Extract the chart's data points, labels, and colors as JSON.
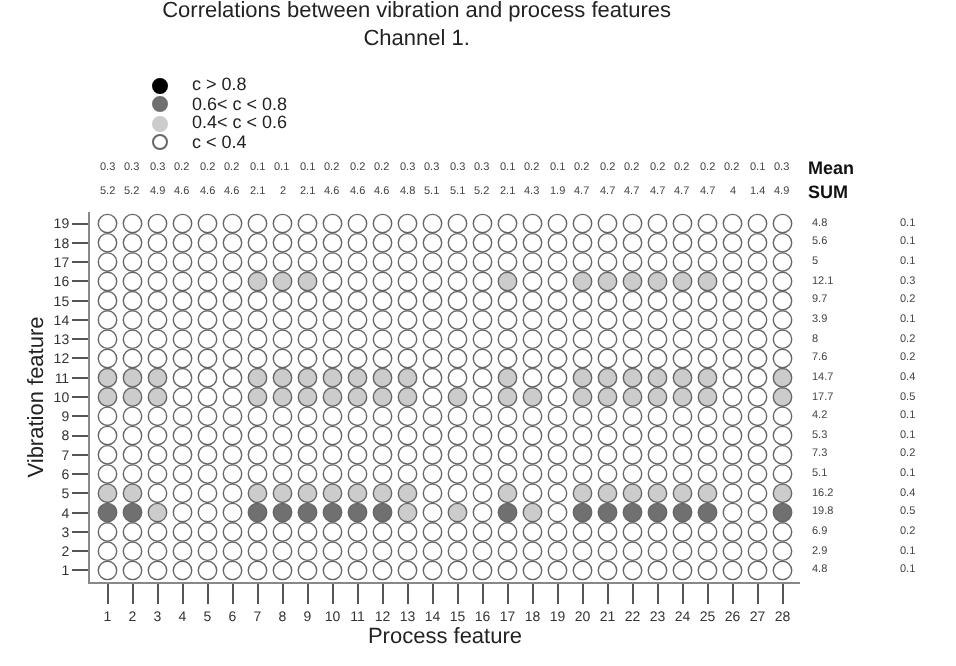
{
  "chart_data": {
    "type": "scatter",
    "title": "Correlations between vibration and process features",
    "subtitle": "Channel 1.",
    "xlabel": "Process feature",
    "ylabel": "Vibration feature",
    "xlim": [
      0.3,
      28.7
    ],
    "xticks": [
      1,
      2,
      3,
      4,
      5,
      6,
      7,
      8,
      9,
      10,
      11,
      12,
      13,
      14,
      15,
      16,
      17,
      18,
      19,
      20,
      21,
      22,
      23,
      24,
      25,
      26,
      27,
      28
    ],
    "ylim": [
      0.4,
      19.6
    ],
    "yticks": [
      1,
      2,
      3,
      4,
      5,
      6,
      7,
      8,
      9,
      10,
      11,
      12,
      13,
      14,
      15,
      16,
      17,
      18,
      19
    ],
    "annotations": [
      "Mean",
      "SUM",
      "0.3",
      "0.3",
      "0.3",
      "0.2",
      "0.2",
      "0.2",
      "0.1",
      "0.1",
      "0.1",
      "0.2",
      "0.2",
      "0.2",
      "0.3",
      "0.3",
      "0.3",
      "0.3",
      "0.1",
      "0.2",
      "0.1",
      "0.2",
      "0.2",
      "0.2",
      "0.2",
      "0.2",
      "0.2",
      "0.2",
      "0.1",
      "0.3",
      "5.2",
      "5.2",
      "4.9",
      "4.6",
      "4.6",
      "4.6",
      "2.1",
      "2",
      "2.1",
      "4.6",
      "4.6",
      "4.6",
      "4.8",
      "5.1",
      "5.1",
      "5.2",
      "2.1",
      "4.3",
      "1.9",
      "4.7",
      "4.7",
      "4.7",
      "4.7",
      "4.7",
      "4.7",
      "4",
      "1.4",
      "4.9",
      "4.8",
      "5.6",
      "5",
      "12.1",
      "9.7",
      "3.9",
      "8",
      "7.6",
      "14.7",
      "17.7",
      "4.2",
      "5.3",
      "7.3",
      "5.1",
      "16.2",
      "19.8",
      "6.9",
      "2.9",
      "4.8",
      "0.1",
      "0.1",
      "0.1",
      "0.3",
      "0.2",
      "0.1",
      "0.2",
      "0.2",
      "0.4",
      "0.5",
      "0.1",
      "0.1",
      "0.2",
      "0.1",
      "0.4",
      "0.5",
      "0.2",
      "0.1",
      "0.1"
    ],
    "marker": "circle",
    "grid": false,
    "legend": "top left",
    "series": [
      {
        "name": "c > 0.8",
        "color": "#000000"
      },
      {
        "name": "0.6< c < 0.8",
        "color": "#707070",
        "x": [
          1,
          2,
          7,
          8,
          9,
          10,
          11,
          12,
          17,
          20,
          21,
          22,
          23,
          24,
          25,
          28
        ],
        "values": [
          4,
          4,
          4,
          4,
          4,
          4,
          4,
          4,
          4,
          4,
          4,
          4,
          4,
          4,
          4,
          4
        ]
      },
      {
        "name": "0.4< c < 0.6",
        "color": "#cccccc",
        "x": [
          7,
          8,
          9,
          17,
          20,
          21,
          22,
          23,
          24,
          25,
          1,
          2,
          3,
          7,
          8,
          9,
          10,
          11,
          12,
          13,
          17,
          20,
          21,
          22,
          23,
          24,
          25,
          28,
          1,
          2,
          3,
          7,
          8,
          9,
          10,
          11,
          12,
          13,
          15,
          17,
          18,
          20,
          21,
          22,
          23,
          24,
          25,
          28,
          1,
          2,
          7,
          8,
          9,
          10,
          11,
          12,
          13,
          17,
          20,
          21,
          22,
          23,
          24,
          25,
          28,
          3,
          13,
          15,
          18
        ],
        "values": [
          16,
          16,
          16,
          16,
          16,
          16,
          16,
          16,
          16,
          16,
          11,
          11,
          11,
          11,
          11,
          11,
          11,
          11,
          11,
          11,
          11,
          11,
          11,
          11,
          11,
          11,
          11,
          11,
          10,
          10,
          10,
          10,
          10,
          10,
          10,
          10,
          10,
          10,
          10,
          10,
          10,
          10,
          10,
          10,
          10,
          10,
          10,
          10,
          5,
          5,
          5,
          5,
          5,
          5,
          5,
          5,
          5,
          5,
          5,
          5,
          5,
          5,
          5,
          5,
          5,
          4,
          4,
          4,
          4
        ]
      },
      {
        "name": "c < 0.4",
        "color": "#ffffff",
        "x": [
          1,
          2,
          3,
          4,
          5,
          6,
          7,
          8,
          9,
          10,
          11,
          12,
          13,
          14,
          15,
          16,
          17,
          18,
          19,
          20,
          21,
          22,
          23,
          24,
          25,
          26,
          27,
          28,
          1,
          2,
          3,
          4,
          5,
          6,
          7,
          8,
          9,
          10,
          11,
          12,
          13,
          14,
          15,
          16,
          17,
          18,
          19,
          20,
          21,
          22,
          23,
          24,
          25,
          26,
          27,
          28,
          1,
          2,
          3,
          4,
          5,
          6,
          7,
          8,
          9,
          10,
          11,
          12,
          13,
          14,
          15,
          16,
          17,
          18,
          19,
          20,
          21,
          22,
          23,
          24,
          25,
          26,
          27,
          28,
          1,
          2,
          3,
          4,
          5,
          6,
          10,
          11,
          12,
          13,
          14,
          15,
          16,
          18,
          19,
          26,
          27,
          28,
          1,
          2,
          3,
          4,
          5,
          6,
          7,
          8,
          9,
          10,
          11,
          12,
          13,
          14,
          15,
          16,
          17,
          18,
          19,
          20,
          21,
          22,
          23,
          24,
          25,
          26,
          27,
          28,
          1,
          2,
          3,
          4,
          5,
          6,
          7,
          8,
          9,
          10,
          11,
          12,
          13,
          14,
          15,
          16,
          17,
          18,
          19,
          20,
          21,
          22,
          23,
          24,
          25,
          26,
          27,
          28,
          1,
          2,
          3,
          4,
          5,
          6,
          7,
          8,
          9,
          10,
          11,
          12,
          13,
          14,
          15,
          16,
          17,
          18,
          19,
          20,
          21,
          22,
          23,
          24,
          25,
          26,
          27,
          28,
          1,
          2,
          3,
          4,
          5,
          6,
          7,
          8,
          9,
          10,
          11,
          12,
          13,
          14,
          15,
          16,
          17,
          18,
          19,
          20,
          21,
          22,
          23,
          24,
          25,
          26,
          27,
          28,
          4,
          5,
          6,
          14,
          15,
          16,
          18,
          19,
          26,
          27,
          4,
          5,
          6,
          14,
          16,
          19,
          26,
          27,
          1,
          2,
          3,
          4,
          5,
          6,
          7,
          8,
          9,
          10,
          11,
          12,
          13,
          14,
          15,
          16,
          17,
          18,
          19,
          20,
          21,
          22,
          23,
          24,
          25,
          26,
          27,
          28,
          1,
          2,
          3,
          4,
          5,
          6,
          7,
          8,
          9,
          10,
          11,
          12,
          13,
          14,
          15,
          16,
          17,
          18,
          19,
          20,
          21,
          22,
          23,
          24,
          25,
          26,
          27,
          28,
          1,
          2,
          3,
          4,
          5,
          6,
          7,
          8,
          9,
          10,
          11,
          12,
          13,
          14,
          15,
          16,
          17,
          18,
          19,
          20,
          21,
          22,
          23,
          24,
          25,
          26,
          27,
          28,
          1,
          2,
          3,
          4,
          5,
          6,
          7,
          8,
          9,
          10,
          11,
          12,
          13,
          14,
          15,
          16,
          17,
          18,
          19,
          20,
          21,
          22,
          23,
          24,
          25,
          26,
          27,
          28,
          3,
          4,
          5,
          6,
          14,
          15,
          16,
          18,
          19,
          26,
          27,
          4,
          5,
          6,
          14,
          16,
          19,
          26,
          27,
          1,
          2,
          3,
          4,
          5,
          6,
          7,
          8,
          9,
          10,
          11,
          12,
          13,
          14,
          15,
          16,
          17,
          18,
          19,
          20,
          21,
          22,
          23,
          24,
          25,
          26,
          27,
          28,
          1,
          2,
          3,
          4,
          5,
          6,
          7,
          8,
          9,
          10,
          11,
          12,
          13,
          14,
          15,
          16,
          17,
          18,
          19,
          20,
          21,
          22,
          23,
          24,
          25,
          26,
          27,
          28,
          1,
          2,
          3,
          4,
          5,
          6,
          7,
          8,
          9,
          10,
          11,
          12,
          13,
          14,
          15,
          16,
          17,
          18,
          19,
          20,
          21,
          22,
          23,
          24,
          25,
          26,
          27,
          28
        ],
        "values": [
          19,
          19,
          19,
          19,
          19,
          19,
          19,
          19,
          19,
          19,
          19,
          19,
          19,
          19,
          19,
          19,
          19,
          19,
          19,
          19,
          19,
          19,
          19,
          19,
          19,
          19,
          19,
          19,
          18,
          18,
          18,
          18,
          18,
          18,
          18,
          18,
          18,
          18,
          18,
          18,
          18,
          18,
          18,
          18,
          18,
          18,
          18,
          18,
          18,
          18,
          18,
          18,
          18,
          18,
          18,
          18,
          17,
          17,
          17,
          17,
          17,
          17,
          17,
          17,
          17,
          17,
          17,
          17,
          17,
          17,
          17,
          17,
          17,
          17,
          17,
          17,
          17,
          17,
          17,
          17,
          17,
          17,
          17,
          17,
          16,
          16,
          16,
          16,
          16,
          16,
          16,
          16,
          16,
          16,
          16,
          16,
          16,
          16,
          16,
          16,
          16,
          16,
          15,
          15,
          15,
          15,
          15,
          15,
          15,
          15,
          15,
          15,
          15,
          15,
          15,
          15,
          15,
          15,
          15,
          15,
          15,
          15,
          15,
          15,
          15,
          15,
          15,
          15,
          15,
          15,
          14,
          14,
          14,
          14,
          14,
          14,
          14,
          14,
          14,
          14,
          14,
          14,
          14,
          14,
          14,
          14,
          14,
          14,
          14,
          14,
          14,
          14,
          14,
          14,
          14,
          14,
          14,
          14,
          13,
          13,
          13,
          13,
          13,
          13,
          13,
          13,
          13,
          13,
          13,
          13,
          13,
          13,
          13,
          13,
          13,
          13,
          13,
          13,
          13,
          13,
          13,
          13,
          13,
          13,
          13,
          13,
          12,
          12,
          12,
          12,
          12,
          12,
          12,
          12,
          12,
          12,
          12,
          12,
          12,
          12,
          12,
          12,
          12,
          12,
          12,
          12,
          12,
          12,
          12,
          12,
          12,
          12,
          12,
          12,
          11,
          11,
          11,
          11,
          11,
          11,
          11,
          11,
          11,
          11,
          10,
          10,
          10,
          10,
          10,
          10,
          10,
          10,
          9,
          9,
          9,
          9,
          9,
          9,
          9,
          9,
          9,
          9,
          9,
          9,
          9,
          9,
          9,
          9,
          9,
          9,
          9,
          9,
          9,
          9,
          9,
          9,
          9,
          9,
          9,
          9,
          8,
          8,
          8,
          8,
          8,
          8,
          8,
          8,
          8,
          8,
          8,
          8,
          8,
          8,
          8,
          8,
          8,
          8,
          8,
          8,
          8,
          8,
          8,
          8,
          8,
          8,
          8,
          8,
          7,
          7,
          7,
          7,
          7,
          7,
          7,
          7,
          7,
          7,
          7,
          7,
          7,
          7,
          7,
          7,
          7,
          7,
          7,
          7,
          7,
          7,
          7,
          7,
          7,
          7,
          7,
          7,
          6,
          6,
          6,
          6,
          6,
          6,
          6,
          6,
          6,
          6,
          6,
          6,
          6,
          6,
          6,
          6,
          6,
          6,
          6,
          6,
          6,
          6,
          6,
          6,
          6,
          6,
          6,
          6,
          5,
          5,
          5,
          5,
          5,
          5,
          5,
          5,
          5,
          5,
          5,
          4,
          4,
          4,
          4,
          4,
          4,
          4,
          4,
          3,
          3,
          3,
          3,
          3,
          3,
          3,
          3,
          3,
          3,
          3,
          3,
          3,
          3,
          3,
          3,
          3,
          3,
          3,
          3,
          3,
          3,
          3,
          3,
          3,
          3,
          3,
          3,
          2,
          2,
          2,
          2,
          2,
          2,
          2,
          2,
          2,
          2,
          2,
          2,
          2,
          2,
          2,
          2,
          2,
          2,
          2,
          2,
          2,
          2,
          2,
          2,
          2,
          2,
          2,
          2,
          1,
          1,
          1,
          1,
          1,
          1,
          1,
          1,
          1,
          1,
          1,
          1,
          1,
          1,
          1,
          1,
          1,
          1,
          1,
          1,
          1,
          1,
          1,
          1,
          1,
          1,
          1,
          1
        ]
      }
    ]
  }
}
